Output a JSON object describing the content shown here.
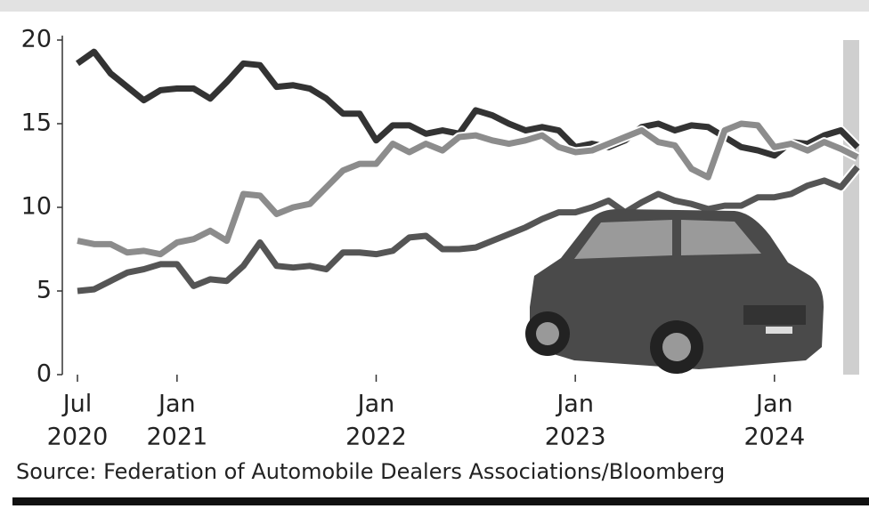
{
  "chart_data": {
    "type": "line",
    "x": [
      "2020-07",
      "2020-08",
      "2020-09",
      "2020-10",
      "2020-11",
      "2020-12",
      "2021-01",
      "2021-02",
      "2021-03",
      "2021-04",
      "2021-05",
      "2021-06",
      "2021-07",
      "2021-08",
      "2021-09",
      "2021-10",
      "2021-11",
      "2021-12",
      "2022-01",
      "2022-02",
      "2022-03",
      "2022-04",
      "2022-05",
      "2022-06",
      "2022-07",
      "2022-08",
      "2022-09",
      "2022-10",
      "2022-11",
      "2022-12",
      "2023-01",
      "2023-02",
      "2023-03",
      "2023-04",
      "2023-05",
      "2023-06",
      "2023-07",
      "2023-08",
      "2023-09",
      "2023-10",
      "2023-11",
      "2023-12",
      "2024-01",
      "2024-02",
      "2024-03",
      "2024-04",
      "2024-05",
      "2024-06"
    ],
    "series": [
      {
        "color": "#333333",
        "values": [
          18.6,
          19.3,
          18.0,
          17.2,
          16.4,
          17.0,
          17.1,
          17.1,
          16.5,
          17.5,
          18.6,
          18.5,
          17.2,
          17.3,
          17.1,
          16.5,
          15.6,
          15.6,
          14.0,
          14.9,
          14.9,
          14.4,
          14.6,
          14.4,
          15.8,
          15.5,
          15.0,
          14.6,
          14.8,
          14.6,
          13.6,
          13.8,
          13.6,
          14.0,
          14.8,
          15.0,
          14.6,
          14.9,
          14.8,
          14.2,
          13.6,
          13.4,
          13.1,
          13.9,
          13.8,
          14.3,
          14.6,
          13.6
        ]
      },
      {
        "color": "#8c8c8c",
        "values": [
          8.0,
          7.8,
          7.8,
          7.3,
          7.4,
          7.2,
          7.9,
          8.1,
          8.6,
          8.0,
          10.8,
          10.7,
          9.6,
          10.0,
          10.2,
          11.2,
          12.2,
          12.6,
          12.6,
          13.8,
          13.3,
          13.8,
          13.4,
          14.2,
          14.3,
          14.0,
          13.8,
          14.0,
          14.3,
          13.6,
          13.3,
          13.4,
          13.8,
          14.2,
          14.6,
          13.9,
          13.7,
          12.3,
          11.8,
          14.6,
          15.0,
          14.9,
          13.6,
          13.8,
          13.4,
          13.9,
          13.5,
          13.0
        ]
      },
      {
        "color": "#555555",
        "values": [
          5.0,
          5.1,
          5.6,
          6.1,
          6.3,
          6.6,
          6.6,
          5.3,
          5.7,
          5.6,
          6.5,
          7.9,
          6.5,
          6.4,
          6.5,
          6.3,
          7.3,
          7.3,
          7.2,
          7.4,
          8.2,
          8.3,
          7.5,
          7.5,
          7.6,
          8.0,
          8.4,
          8.8,
          9.3,
          9.7,
          9.7,
          10.0,
          10.4,
          9.7,
          10.3,
          10.8,
          10.4,
          10.2,
          9.9,
          10.1,
          10.1,
          10.6,
          10.6,
          10.8,
          11.3,
          11.6,
          11.2,
          12.4
        ]
      }
    ],
    "xlim": [
      "2020-07",
      "2024-06"
    ],
    "xticks": [
      {
        "value": "2020-07",
        "label": [
          "Jul",
          "2020"
        ]
      },
      {
        "value": "2021-01",
        "label": [
          "Jan",
          "2021"
        ]
      },
      {
        "value": "2022-01",
        "label": [
          "Jan",
          "2022"
        ]
      },
      {
        "value": "2023-01",
        "label": [
          "Jan",
          "2023"
        ]
      },
      {
        "value": "2024-01",
        "label": [
          "Jan",
          "2024"
        ]
      }
    ],
    "ylim": [
      0,
      20
    ],
    "yticks": [
      0,
      5,
      10,
      15,
      20
    ],
    "source": "Source: Federation of Automobile Dealers Associations/Bloomberg"
  }
}
